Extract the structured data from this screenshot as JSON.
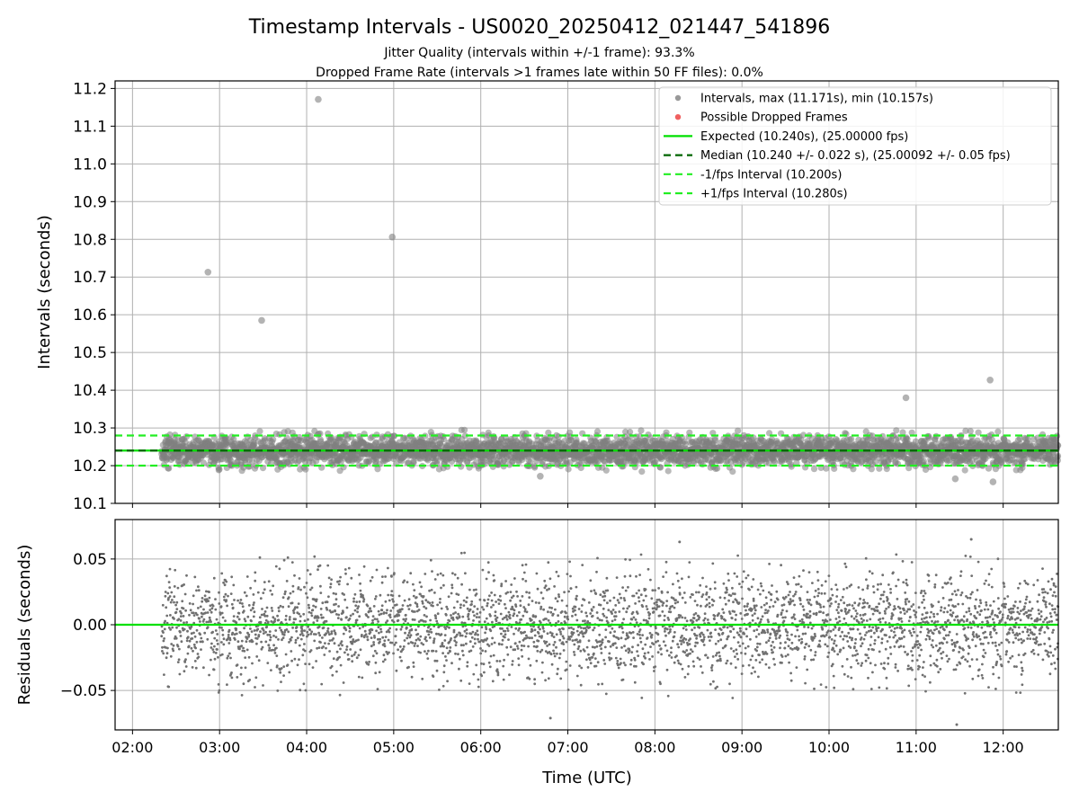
{
  "figure": {
    "title": "Timestamp Intervals - US0020_20250412_021447_541896",
    "subtitle_1": "Jitter Quality (intervals within +/-1 frame): 93.3%",
    "subtitle_2": "Dropped Frame Rate (intervals >1 frames late within 50 FF files): 0.0%"
  },
  "colors": {
    "intervals": "#808080",
    "dropped": "#ff0000",
    "expected": "#00e000",
    "median": "#006400",
    "fps_bounds": "#22ee22",
    "residuals": "#707070",
    "grid": "#b0b0b0"
  },
  "chart_data": [
    {
      "type": "scatter",
      "panel": "top",
      "ylabel": "Intervals (seconds)",
      "xlim": [
        "01:48",
        "12:38"
      ],
      "ylim": [
        10.1,
        11.22
      ],
      "x_ticks": [
        "02:00",
        "03:00",
        "04:00",
        "05:00",
        "06:00",
        "07:00",
        "08:00",
        "09:00",
        "10:00",
        "11:00",
        "12:00"
      ],
      "y_ticks": [
        "10.1",
        "10.2",
        "10.3",
        "10.4",
        "10.5",
        "10.6",
        "10.7",
        "10.8",
        "10.9",
        "11.0",
        "11.1",
        "11.2"
      ],
      "grid": true,
      "legend_position": "top-right",
      "legend": [
        {
          "label": "Intervals, max (11.171s), min (10.157s)",
          "marker": "dot",
          "color": "#999999"
        },
        {
          "label": "Possible Dropped Frames",
          "marker": "dot",
          "color": "#f06060"
        },
        {
          "label": "Expected (10.240s), (25.00000 fps)",
          "marker": "line",
          "color": "#00e000"
        },
        {
          "label": "Median (10.240 +/- 0.022 s), (25.00092 +/- 0.05 fps)",
          "marker": "dash",
          "color": "#006400"
        },
        {
          "label": "-1/fps Interval (10.200s)",
          "marker": "dash",
          "color": "#22ee22"
        },
        {
          "label": "+1/fps Interval (10.280s)",
          "marker": "dash",
          "color": "#22ee22"
        }
      ],
      "reference_lines": [
        {
          "name": "Expected",
          "y": 10.24
        },
        {
          "name": "Median",
          "y": 10.24
        },
        {
          "name": "-1/fps",
          "y": 10.2
        },
        {
          "name": "+1/fps",
          "y": 10.28
        }
      ],
      "distribution": {
        "x_start": "02:20",
        "x_end": "12:38",
        "center": 10.24,
        "spread": 0.022,
        "count": 3600
      },
      "outliers": [
        {
          "x": "02:52",
          "y": 10.713
        },
        {
          "x": "03:29",
          "y": 10.585
        },
        {
          "x": "04:08",
          "y": 11.171
        },
        {
          "x": "04:59",
          "y": 10.806
        },
        {
          "x": "10:53",
          "y": 10.38
        },
        {
          "x": "11:51",
          "y": 10.427
        },
        {
          "x": "11:53",
          "y": 10.157
        },
        {
          "x": "06:41",
          "y": 10.172
        },
        {
          "x": "11:27",
          "y": 10.165
        }
      ]
    },
    {
      "type": "scatter",
      "panel": "bottom",
      "xlabel": "Time (UTC)",
      "ylabel": "Residuals (seconds)",
      "xlim": [
        "01:48",
        "12:38"
      ],
      "ylim": [
        -0.08,
        0.08
      ],
      "x_ticks": [
        "02:00",
        "03:00",
        "04:00",
        "05:00",
        "06:00",
        "07:00",
        "08:00",
        "09:00",
        "10:00",
        "11:00",
        "12:00"
      ],
      "y_ticks": [
        "0.05",
        "0.00",
        "−0.05"
      ],
      "grid": true,
      "reference_lines": [
        {
          "name": "zero",
          "y": 0.0
        }
      ],
      "distribution": {
        "x_start": "02:20",
        "x_end": "12:38",
        "center": 0.0,
        "spread": 0.022,
        "count": 3600
      },
      "outliers": [
        {
          "x": "11:28",
          "y": -0.076
        },
        {
          "x": "11:38",
          "y": 0.065
        },
        {
          "x": "06:48",
          "y": -0.071
        },
        {
          "x": "08:17",
          "y": 0.063
        }
      ]
    }
  ]
}
